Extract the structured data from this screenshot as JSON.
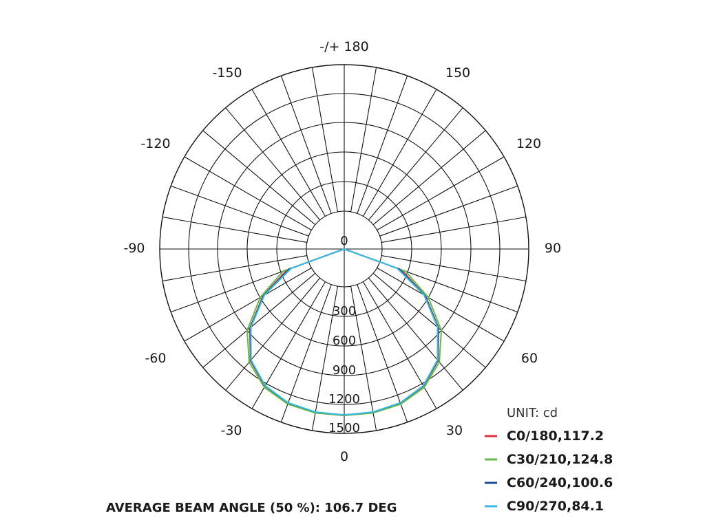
{
  "chart_data": {
    "type": "polar",
    "angle_labels": [
      {
        "angle": 180,
        "text": "-/+ 180"
      },
      {
        "angle": 150,
        "text": "150"
      },
      {
        "angle": -150,
        "text": "-150"
      },
      {
        "angle": 120,
        "text": "120"
      },
      {
        "angle": -120,
        "text": "-120"
      },
      {
        "angle": 90,
        "text": "90"
      },
      {
        "angle": -90,
        "text": "-90"
      },
      {
        "angle": 60,
        "text": "60"
      },
      {
        "angle": -60,
        "text": "-60"
      },
      {
        "angle": 30,
        "text": "30"
      },
      {
        "angle": -30,
        "text": "-30"
      },
      {
        "angle": 0,
        "text": "0"
      }
    ],
    "radial_ticks": [
      0,
      300,
      600,
      900,
      1200,
      1500
    ],
    "radial_tick_labels": [
      "0",
      "300",
      "600",
      "900",
      "1200",
      "1500"
    ],
    "radial_max": 1500,
    "zero_angle_direction": "down",
    "angle_step": 10,
    "unit": "UNIT: cd",
    "series": [
      {
        "name": "C0/180,117.2",
        "color": "#e0323c",
        "angles": [
          -90,
          -80,
          -70,
          -60,
          -50,
          -40,
          -30,
          -20,
          -10,
          0,
          10,
          20,
          30,
          40,
          50,
          60,
          70,
          80,
          90
        ],
        "values": [
          0,
          0,
          270,
          566,
          865,
          1100,
          1230,
          1290,
          1308,
          1310,
          1308,
          1290,
          1230,
          1100,
          865,
          566,
          270,
          0,
          0
        ]
      },
      {
        "name": "C30/210,124.8",
        "color": "#66bb44",
        "angles": [
          -90,
          -80,
          -70,
          -60,
          -50,
          -40,
          -30,
          -20,
          -10,
          0,
          10,
          20,
          30,
          40,
          50,
          60,
          70,
          80,
          90
        ],
        "values": [
          0,
          0,
          290,
          600,
          900,
          1120,
          1245,
          1300,
          1315,
          1315,
          1315,
          1300,
          1245,
          1120,
          900,
          600,
          290,
          0,
          0
        ]
      },
      {
        "name": "C60/240,100.6",
        "color": "#1f4e9a",
        "angles": [
          -90,
          -80,
          -70,
          -60,
          -50,
          -40,
          -30,
          -20,
          -10,
          0,
          10,
          20,
          30,
          40,
          50,
          60,
          70,
          80,
          90
        ],
        "values": [
          0,
          0,
          260,
          560,
          860,
          1095,
          1228,
          1288,
          1306,
          1310,
          1306,
          1288,
          1228,
          1095,
          860,
          560,
          260,
          0,
          0
        ]
      },
      {
        "name": "C90/270,84.1",
        "color": "#3bbde0",
        "angles": [
          -90,
          -80,
          -70,
          -60,
          -50,
          -40,
          -30,
          -20,
          -10,
          0,
          10,
          20,
          30,
          40,
          50,
          60,
          70,
          80,
          90
        ],
        "values": [
          0,
          0,
          250,
          550,
          850,
          1090,
          1225,
          1285,
          1305,
          1310,
          1305,
          1285,
          1225,
          1090,
          850,
          550,
          250,
          0,
          0
        ]
      }
    ]
  },
  "footer": "AVERAGE BEAM ANGLE (50 %): 106.7 DEG"
}
